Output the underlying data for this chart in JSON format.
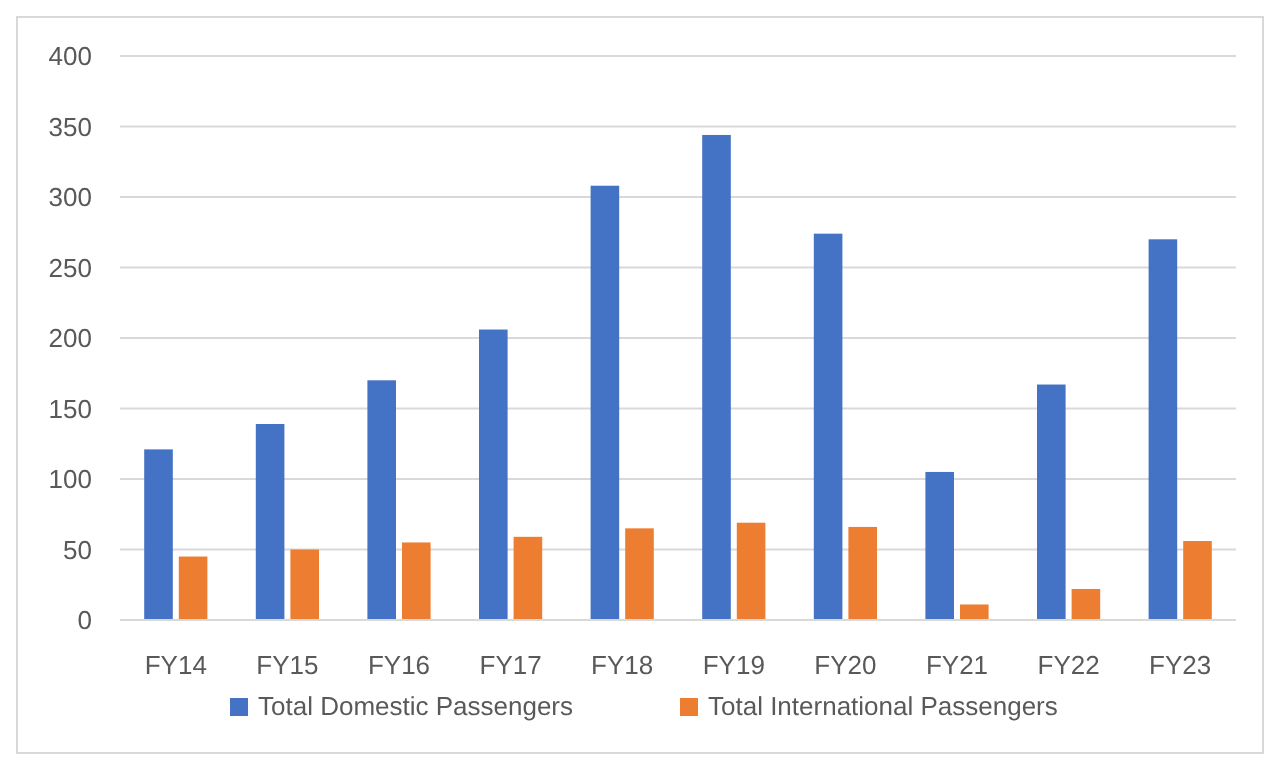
{
  "chart_data": {
    "type": "bar",
    "categories": [
      "FY14",
      "FY15",
      "FY16",
      "FY17",
      "FY18",
      "FY19",
      "FY20",
      "FY21",
      "FY22",
      "FY23"
    ],
    "series": [
      {
        "name": "Total Domestic Passengers",
        "color": "#4472c4",
        "values": [
          121,
          139,
          170,
          206,
          308,
          344,
          274,
          105,
          167,
          270
        ]
      },
      {
        "name": "Total International Passengers",
        "color": "#ed7d31",
        "values": [
          45,
          50,
          55,
          59,
          65,
          69,
          66,
          11,
          22,
          56
        ]
      }
    ],
    "ylim": [
      0,
      400
    ],
    "yticks": [
      0,
      50,
      100,
      150,
      200,
      250,
      300,
      350,
      400
    ],
    "grid": "y",
    "legend": "bottom"
  }
}
